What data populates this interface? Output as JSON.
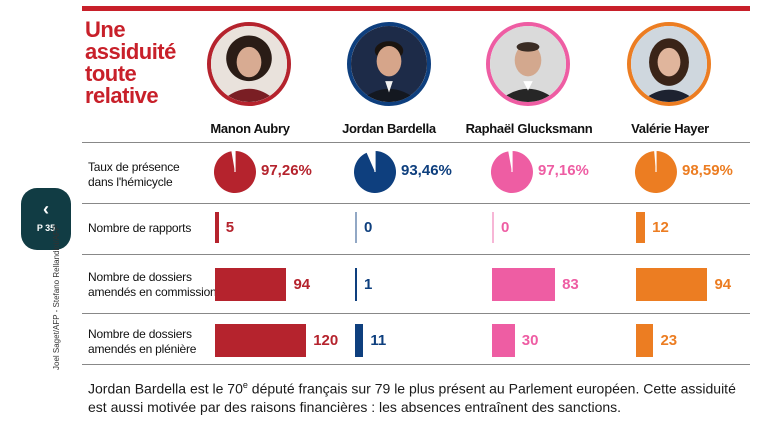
{
  "title_lines": [
    "Une",
    "assiduité",
    "toute",
    "relative"
  ],
  "nav": {
    "back_icon": "chevron-left-icon",
    "page_label": "P 35"
  },
  "credit": "Joel Saget/AFP - Stefano Rellandini/AFP",
  "caption": {
    "text_before": "Jordan Bardella est le 70",
    "superscript": "e",
    "text_after": " député français sur 79 le plus présent au Parlement européen. Cette assiduité est aussi motivée par des raisons financières : les absences entraînent des sanctions."
  },
  "colors": {
    "accent": "#c8202a"
  },
  "chart_data": {
    "type": "table",
    "candidates": [
      {
        "name": "Manon Aubry",
        "color": "#b5232d"
      },
      {
        "name": "Jordan Bardella",
        "color": "#0e3f7e"
      },
      {
        "name": "Raphaël Glucksmann",
        "color": "#ee5da3"
      },
      {
        "name": "Valérie Hayer",
        "color": "#ec7d22"
      }
    ],
    "presence": {
      "label_lines": [
        "Taux de présence",
        "dans l'hémicycle"
      ],
      "values": [
        97.26,
        93.46,
        97.16,
        98.59
      ],
      "labels": [
        "97,26%",
        "93,46%",
        "97,16%",
        "98,59%"
      ]
    },
    "metrics": [
      {
        "label_lines": [
          "Nombre de rapports"
        ],
        "values": [
          5,
          0,
          0,
          12
        ]
      },
      {
        "label_lines": [
          "Nombre de dossiers",
          "amendés en commission"
        ],
        "values": [
          94,
          1,
          83,
          94
        ]
      },
      {
        "label_lines": [
          "Nombre de dossiers",
          "amendés en plénière"
        ],
        "values": [
          120,
          11,
          30,
          23
        ]
      }
    ]
  }
}
